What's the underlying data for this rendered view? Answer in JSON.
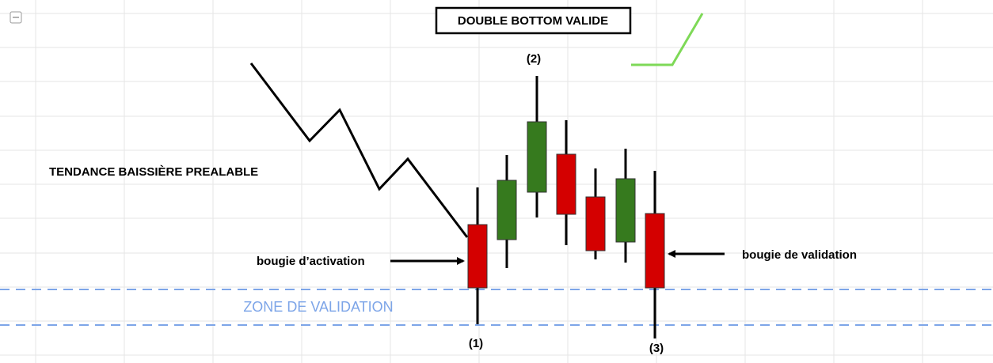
{
  "title": "DOUBLE BOTTOM VALIDE",
  "labels": {
    "peak": "(2)",
    "trend": "TENDANCE BAISSIÈRE PREALABLE",
    "activation": "bougie d’activation",
    "validation": "bougie de validation",
    "zone": "ZONE DE VALIDATION",
    "first_bottom": "(1)",
    "second_bottom": "(3)"
  }
}
